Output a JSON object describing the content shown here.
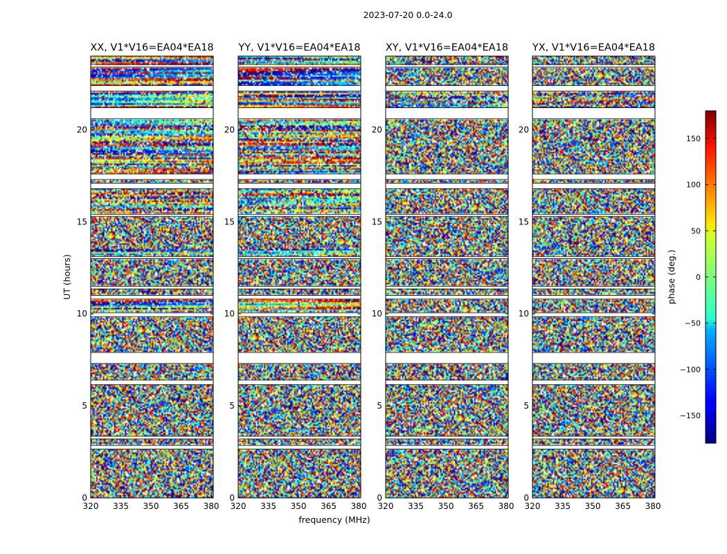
{
  "chart_data": {
    "type": "heatmap",
    "suptitle": "2023-07-20 0.0-24.0",
    "xlabel": "frequency (MHz)",
    "ylabel": "UT (hours)",
    "xlim": [
      320,
      381
    ],
    "ylim": [
      0,
      24
    ],
    "xticks": [
      320,
      335,
      350,
      365,
      380
    ],
    "yticks": [
      0,
      5,
      10,
      15,
      20
    ],
    "panels": [
      {
        "title": "XX, V1*V16=EA04*EA18",
        "pol": "XX"
      },
      {
        "title": "YY, V1*V16=EA04*EA18",
        "pol": "YY"
      },
      {
        "title": "XY, V1*V16=EA04*EA18",
        "pol": "XY"
      },
      {
        "title": "YX, V1*V16=EA04*EA18",
        "pol": "YX"
      }
    ],
    "colorbar": {
      "label": "phase (deg.)",
      "vmin": -180,
      "vmax": 180,
      "ticks": [
        -150,
        -100,
        -50,
        0,
        50,
        100,
        150
      ],
      "tick_labels": [
        "−150",
        "−100",
        "−50",
        "0",
        "50",
        "100",
        "150"
      ],
      "colormap": "jet"
    },
    "gaps_ut": [
      [
        2.65,
        2.85
      ],
      [
        3.2,
        3.35
      ],
      [
        6.15,
        6.4
      ],
      [
        7.3,
        7.9
      ],
      [
        9.85,
        10.05
      ],
      [
        10.8,
        11.0
      ],
      [
        11.35,
        11.5
      ],
      [
        13.0,
        13.1
      ],
      [
        15.3,
        15.4
      ],
      [
        16.8,
        17.1
      ],
      [
        17.3,
        17.6
      ],
      [
        20.6,
        21.2
      ],
      [
        22.1,
        22.4
      ],
      [
        23.4,
        23.55
      ]
    ],
    "structured_bands": [
      {
        "ut": [
          21.2,
          24.0
        ],
        "pols": [
          "XX",
          "YY"
        ],
        "strength": 0.8
      },
      {
        "ut": [
          17.6,
          20.6
        ],
        "pols": [
          "XX",
          "YY"
        ],
        "strength": 0.6
      },
      {
        "ut": [
          15.4,
          16.8
        ],
        "pols": [
          "XX",
          "YY"
        ],
        "strength": 0.5
      },
      {
        "ut": [
          13.2,
          13.5
        ],
        "pols": [
          "XX",
          "YY"
        ],
        "strength": 0.7
      },
      {
        "ut": [
          10.2,
          10.8
        ],
        "pols": [
          "XX",
          "YY"
        ],
        "strength": 0.8
      },
      {
        "ut": [
          21.2,
          22.1
        ],
        "pols": [
          "XY",
          "YX"
        ],
        "strength": 0.4
      }
    ]
  }
}
